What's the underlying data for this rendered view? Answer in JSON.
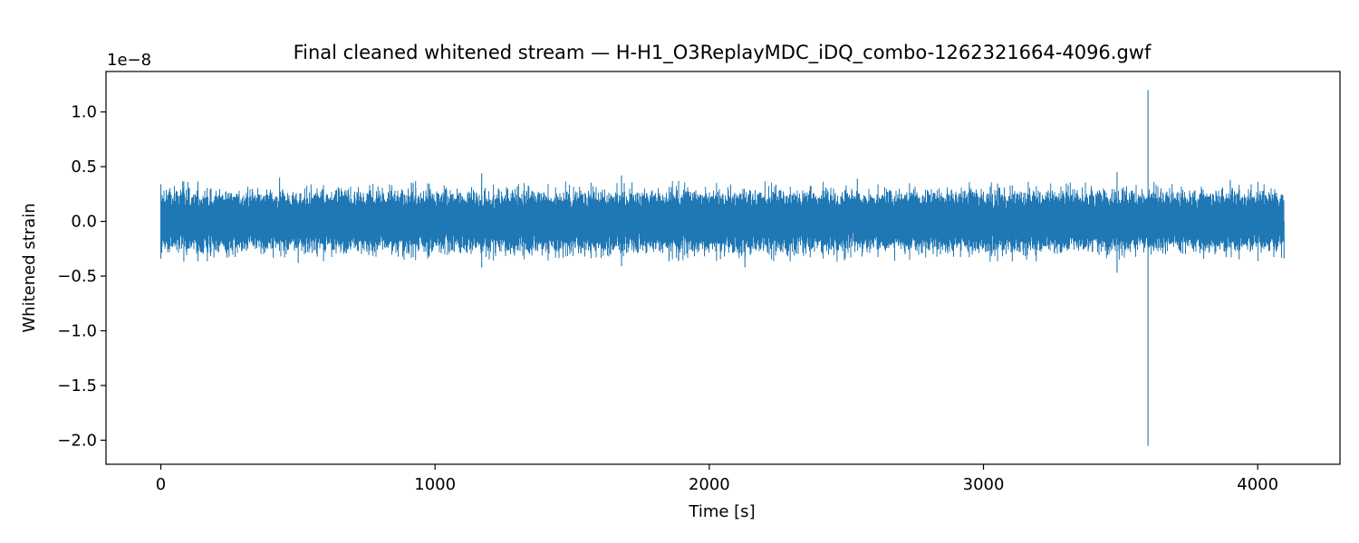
{
  "chart_data": {
    "type": "line",
    "title": "Final cleaned whitened stream — H-H1_O3ReplayMDC_iDQ_combo-1262321664-4096.gwf",
    "xlabel": "Time [s]",
    "ylabel": "Whitened strain",
    "y_offset_label": "1e−8",
    "y_scale": 1e-08,
    "xlim": [
      -200,
      4300
    ],
    "ylim": [
      -2.22,
      1.37
    ],
    "x_ticks": [
      0,
      1000,
      2000,
      3000,
      4000
    ],
    "x_tick_labels": [
      "0",
      "1000",
      "2000",
      "3000",
      "4000"
    ],
    "y_ticks": [
      1.0,
      0.5,
      0.0,
      -0.5,
      -1.0,
      -1.5,
      -2.0
    ],
    "y_tick_labels": [
      "1.0",
      "0.5",
      "0.0",
      "−0.5",
      "−1.0",
      "−1.5",
      "−2.0"
    ],
    "grid": false,
    "series_color": "#1f77b4",
    "series": [
      {
        "x_start": 0,
        "x_end": 4096,
        "typical_envelope": 0.27,
        "peak_excursions": [
          {
            "x": 0,
            "y": 0.34
          },
          {
            "x": 0,
            "y": -0.34
          },
          {
            "x": 433,
            "y": 0.4
          },
          {
            "x": 501,
            "y": -0.38
          },
          {
            "x": 1170,
            "y": 0.44
          },
          {
            "x": 1170,
            "y": -0.42
          },
          {
            "x": 1680,
            "y": 0.42
          },
          {
            "x": 1680,
            "y": -0.41
          },
          {
            "x": 2130,
            "y": -0.42
          },
          {
            "x": 2540,
            "y": 0.39
          },
          {
            "x": 3487,
            "y": 0.45
          },
          {
            "x": 3487,
            "y": -0.47
          },
          {
            "x": 3600,
            "y": 1.2
          },
          {
            "x": 3600,
            "y": -2.05
          },
          {
            "x": 3900,
            "y": 0.38
          },
          {
            "x": 4096,
            "y": -0.34
          }
        ]
      }
    ]
  }
}
